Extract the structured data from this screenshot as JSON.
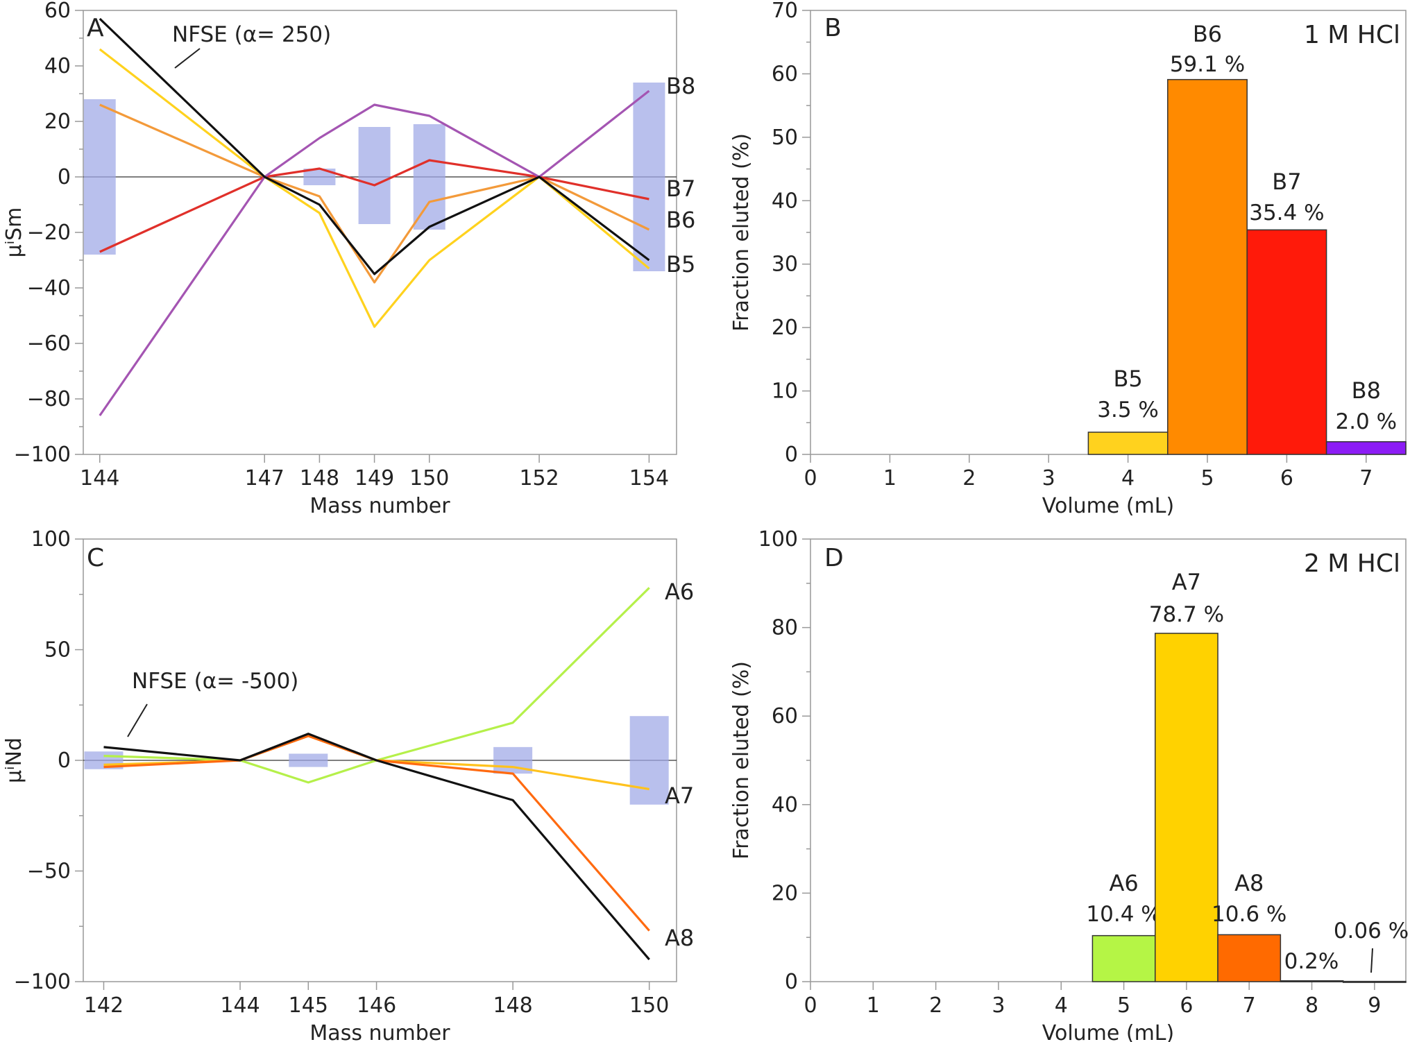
{
  "chart_data": [
    {
      "type": "line",
      "panel": "A",
      "xlabel": "Mass number",
      "ylabel": "μⁱSm",
      "x": [
        144,
        147,
        148,
        149,
        150,
        152,
        154
      ],
      "xticks": [
        144,
        147,
        148,
        149,
        150,
        152,
        154
      ],
      "xlim": [
        143.7,
        154.5
      ],
      "ylim": [
        -100,
        60
      ],
      "yticks": [
        -100,
        -80,
        -60,
        -40,
        -20,
        0,
        20,
        40,
        60
      ],
      "error_bars": [
        {
          "x": 144,
          "ymin": -28,
          "ymax": 28
        },
        {
          "x": 148,
          "ymin": -3,
          "ymax": 3
        },
        {
          "x": 149,
          "ymin": -17,
          "ymax": 18
        },
        {
          "x": 150,
          "ymin": -19,
          "ymax": 19
        },
        {
          "x": 154,
          "ymin": -34,
          "ymax": 34
        }
      ],
      "series": [
        {
          "name": "B5",
          "color": "#ffd21e",
          "values": [
            46,
            0,
            -13,
            -54,
            -30,
            0,
            -33
          ]
        },
        {
          "name": "B6",
          "color": "#f39a3a",
          "values": [
            26,
            0,
            -7,
            -38,
            -9,
            0,
            -19
          ]
        },
        {
          "name": "B7",
          "color": "#e0302a",
          "values": [
            -27,
            0,
            3,
            -3,
            6,
            0,
            -8
          ]
        },
        {
          "name": "B8",
          "color": "#a455b2",
          "values": [
            -86,
            0,
            14,
            26,
            22,
            0,
            31
          ]
        },
        {
          "name": "NFSE (α= 250)",
          "color": "#111111",
          "values": [
            57,
            0,
            -10,
            -35,
            -18,
            0,
            -30
          ]
        }
      ],
      "annotation": "NFSE (α= 250)"
    },
    {
      "type": "bar",
      "panel": "B",
      "title": "1 M HCl",
      "xlabel": "Volume (mL)",
      "ylabel": "Fraction eluted (%)",
      "xlim": [
        0,
        7.5
      ],
      "ylim": [
        0,
        70
      ],
      "xticks": [
        0,
        1,
        2,
        3,
        4,
        5,
        6,
        7
      ],
      "yticks": [
        0,
        10,
        20,
        30,
        40,
        50,
        60,
        70
      ],
      "bars": [
        {
          "name": "B5",
          "x": 4,
          "value": 3.5,
          "label": "3.5 %",
          "color": "#ffd21e"
        },
        {
          "name": "B6",
          "x": 5,
          "value": 59.1,
          "label": "59.1 %",
          "color": "#ff8a00"
        },
        {
          "name": "B7",
          "x": 6,
          "value": 35.4,
          "label": "35.4 %",
          "color": "#ff1a0a"
        },
        {
          "name": "B8",
          "x": 7,
          "value": 2.0,
          "label": "2.0 %",
          "color": "#8c1cf5"
        }
      ]
    },
    {
      "type": "line",
      "panel": "C",
      "xlabel": "Mass number",
      "ylabel": "μⁱNd",
      "x": [
        142,
        144,
        145,
        146,
        148,
        150
      ],
      "xticks": [
        142,
        144,
        145,
        146,
        148,
        150
      ],
      "xlim": [
        141.7,
        150.4
      ],
      "ylim": [
        -100,
        100
      ],
      "yticks": [
        -100,
        -50,
        0,
        50,
        100
      ],
      "error_bars": [
        {
          "x": 142,
          "ymin": -4,
          "ymax": 4
        },
        {
          "x": 145,
          "ymin": -3,
          "ymax": 3
        },
        {
          "x": 148,
          "ymin": -6,
          "ymax": 6
        },
        {
          "x": 150,
          "ymin": -20,
          "ymax": 20
        }
      ],
      "series": [
        {
          "name": "A6",
          "color": "#b5f04a",
          "values": [
            2,
            0,
            -10,
            0,
            17,
            78
          ]
        },
        {
          "name": "A7",
          "color": "#ffc21e",
          "values": [
            -2,
            0,
            11,
            0,
            -3,
            -13
          ]
        },
        {
          "name": "A8",
          "color": "#ff6a10",
          "values": [
            -3,
            0,
            11,
            0,
            -6,
            -77
          ]
        },
        {
          "name": "NFSE (α= -500)",
          "color": "#111111",
          "values": [
            6,
            0,
            12,
            0,
            -18,
            -90
          ]
        }
      ],
      "annotation": "NFSE (α= -500)"
    },
    {
      "type": "bar",
      "panel": "D",
      "title": "2 M HCl",
      "xlabel": "Volume (mL)",
      "ylabel": "Fraction eluted (%)",
      "xlim": [
        0,
        9.5
      ],
      "ylim": [
        0,
        100
      ],
      "xticks": [
        0,
        1,
        2,
        3,
        4,
        5,
        6,
        7,
        8,
        9
      ],
      "yticks": [
        0,
        20,
        40,
        60,
        80,
        100
      ],
      "bars": [
        {
          "name": "A6",
          "x": 5,
          "value": 10.4,
          "label": "10.4 %",
          "color": "#b5f545"
        },
        {
          "name": "A7",
          "x": 6,
          "value": 78.7,
          "label": "78.7 %",
          "color": "#ffd200"
        },
        {
          "name": "A8",
          "x": 7,
          "value": 10.6,
          "label": "10.6 %",
          "color": "#ff6a00"
        },
        {
          "name": "",
          "x": 8,
          "value": 0.2,
          "label": "0.2%",
          "color": "#c03020"
        },
        {
          "name": "",
          "x": 9,
          "value": 0.06,
          "label": "0.06 %",
          "color": "#c03020"
        }
      ]
    }
  ]
}
